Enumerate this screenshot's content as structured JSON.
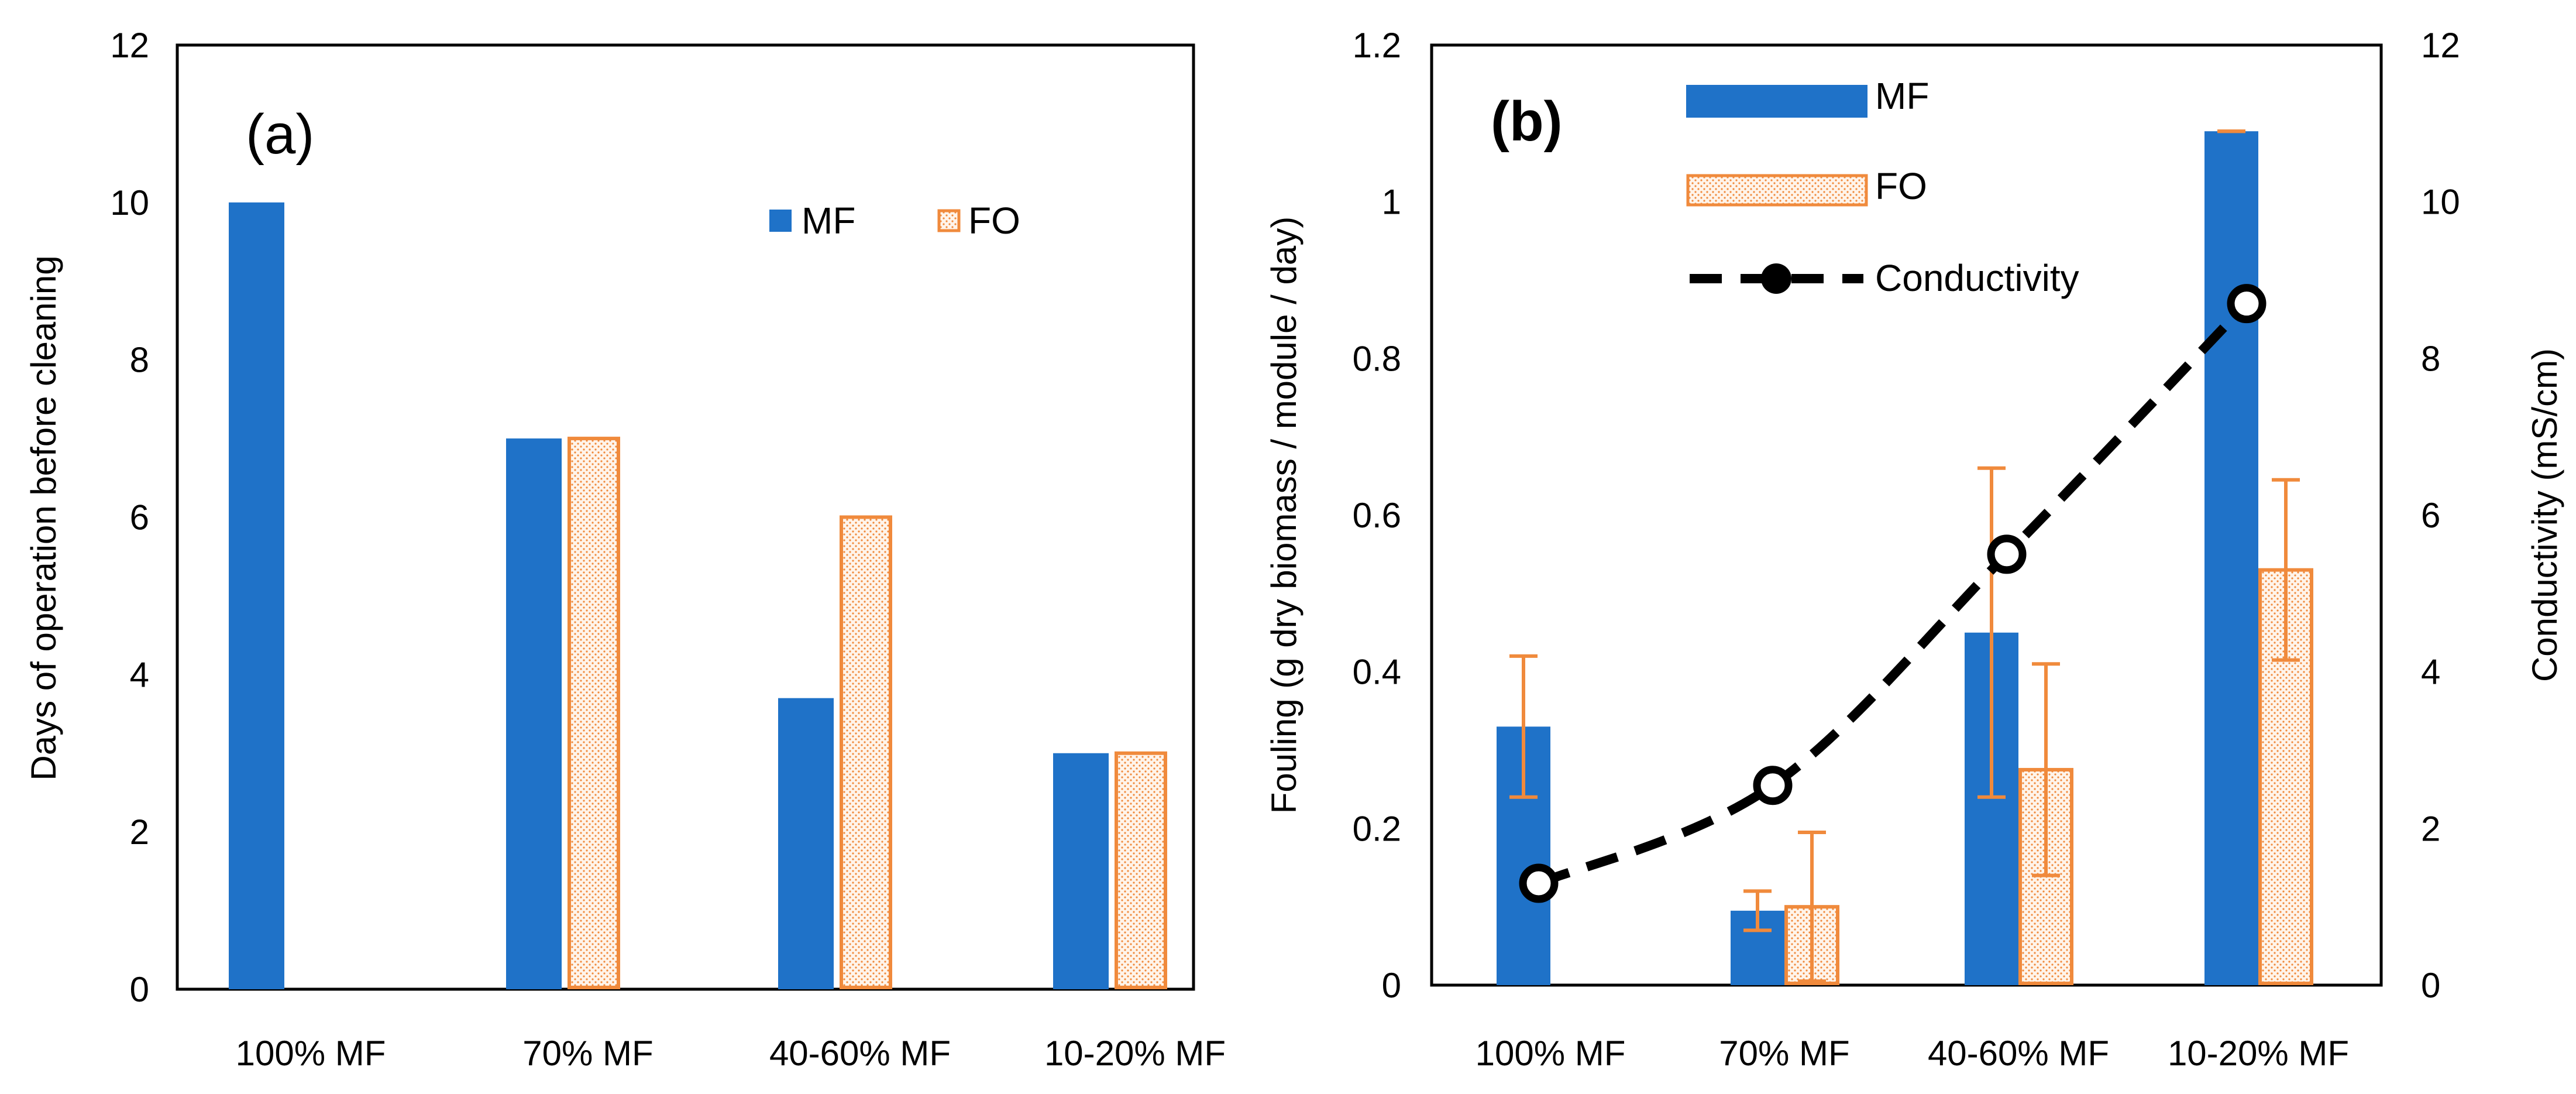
{
  "colors": {
    "mf": "#1f72c8",
    "fo": "#f08a3c",
    "fo_fill": "#fff4ea",
    "conductivity": "#000000",
    "axis": "#000000"
  },
  "chart_data": [
    {
      "type": "bar",
      "panel_label": "(a)",
      "categories": [
        "100% MF",
        "70% MF",
        "40-60% MF",
        "10-20% MF"
      ],
      "series": [
        {
          "name": "MF",
          "values": [
            10,
            7,
            3.7,
            3
          ]
        },
        {
          "name": "FO",
          "values": [
            null,
            7,
            6,
            3
          ]
        }
      ],
      "xlabel": "",
      "ylabel": "Days of operation before cleaning",
      "ylim": [
        0,
        12
      ],
      "yticks": [
        "0",
        "2",
        "4",
        "6",
        "8",
        "10",
        "12"
      ],
      "legend": {
        "placement": "top-right",
        "entries": [
          "MF",
          "FO"
        ]
      },
      "grid": false
    },
    {
      "type": "bar",
      "panel_label": "(b)",
      "categories": [
        "100% MF",
        "70% MF",
        "40-60% MF",
        "10-20% MF"
      ],
      "series": [
        {
          "name": "MF",
          "axis": "left",
          "values": [
            0.33,
            0.095,
            0.45,
            1.09
          ],
          "error": [
            0.09,
            0.025,
            0.21,
            0.0
          ]
        },
        {
          "name": "FO",
          "axis": "left",
          "values": [
            null,
            0.1,
            0.275,
            0.53
          ],
          "error": [
            null,
            0.095,
            0.135,
            0.115
          ]
        },
        {
          "name": "Conductivity",
          "type": "line",
          "style": "dashed",
          "marker": "circle",
          "axis": "right",
          "values": [
            1.3,
            2.55,
            5.5,
            8.7
          ]
        }
      ],
      "xlabel": "",
      "ylabel": "Fouling (g dry biomass / module / day)",
      "ylim": [
        0,
        1.2
      ],
      "yticks": [
        "0",
        "0.2",
        "0.4",
        "0.6",
        "0.8",
        "1",
        "1.2"
      ],
      "y2label": "Conductivity (mS/cm)",
      "y2lim": [
        0,
        12
      ],
      "y2ticks": [
        "0",
        "2",
        "4",
        "6",
        "8",
        "10",
        "12"
      ],
      "legend": {
        "placement": "top-center",
        "entries": [
          "MF",
          "FO",
          "Conductivity"
        ]
      },
      "grid": false
    }
  ]
}
